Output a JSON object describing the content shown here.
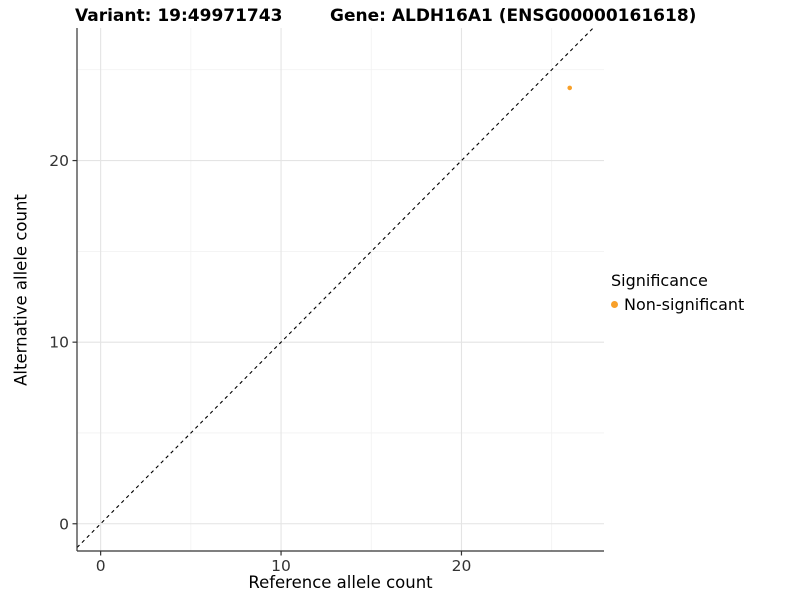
{
  "chart_data": {
    "type": "scatter",
    "titles": {
      "variant": "Variant: 19:49971743",
      "gene": "Gene: ALDH16A1 (ENSG00000161618)"
    },
    "xlabel": "Reference allele count",
    "ylabel": "Alternative allele count",
    "xlim": [
      -1.31,
      27.9
    ],
    "ylim": [
      -1.5,
      27.3
    ],
    "x_ticks": [
      0,
      10,
      20
    ],
    "y_ticks": [
      0,
      10,
      20
    ],
    "x_minor_ticks": [
      5,
      15,
      25
    ],
    "y_minor_ticks": [
      5,
      15,
      25
    ],
    "grid": "major+minor, light gray on white panel",
    "identity_line": {
      "slope": 1,
      "intercept": 0,
      "style": "dashed",
      "color": "#000000"
    },
    "series": [
      {
        "name": "Non-significant",
        "color": "#F8A029",
        "points": [
          {
            "x": 26,
            "y": 24
          }
        ]
      }
    ],
    "legend": {
      "title": "Significance",
      "position": "right",
      "items": [
        {
          "label": "Non-significant",
          "color": "#F8A029"
        }
      ]
    },
    "colors": {
      "grid_major": "#E4E4E4",
      "grid_minor": "#F1F1F1",
      "axis": "#333333",
      "tick_label": "#333333"
    }
  }
}
